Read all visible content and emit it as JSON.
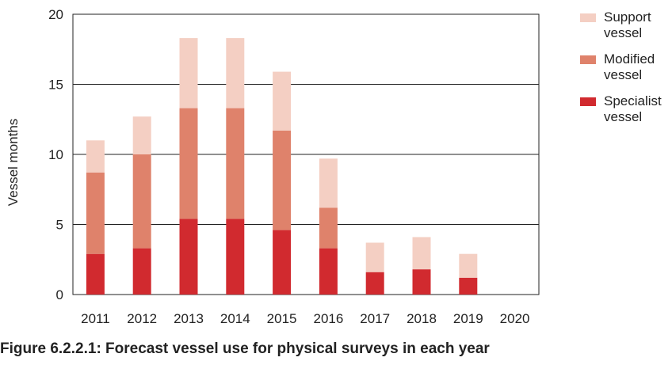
{
  "chart_data": {
    "type": "bar",
    "stacked": true,
    "categories": [
      "2011",
      "2012",
      "2013",
      "2014",
      "2015",
      "2016",
      "2017",
      "2018",
      "2019",
      "2020"
    ],
    "series": [
      {
        "name": "Specialist\nvessel",
        "color": "#d12a2f",
        "values": [
          2.9,
          3.3,
          5.4,
          5.4,
          4.6,
          3.3,
          1.6,
          1.8,
          1.2,
          0
        ]
      },
      {
        "name": "Modified\nvessel",
        "color": "#df826b",
        "values": [
          5.8,
          6.7,
          7.9,
          7.9,
          7.1,
          2.9,
          0,
          0,
          0,
          0
        ]
      },
      {
        "name": "Support\nvessel",
        "color": "#f4cfc3",
        "values": [
          2.3,
          2.7,
          5.0,
          5.0,
          4.2,
          3.5,
          2.1,
          2.3,
          1.7,
          0
        ]
      }
    ],
    "ylabel": "Vessel months",
    "xlabel": "",
    "ylim": [
      0,
      20
    ],
    "yticks": [
      "0",
      "5",
      "10",
      "15",
      "20"
    ],
    "grid": true,
    "legend_position": "right"
  },
  "caption": "Figure 6.2.2.1: Forecast vessel use for physical surveys in each year"
}
